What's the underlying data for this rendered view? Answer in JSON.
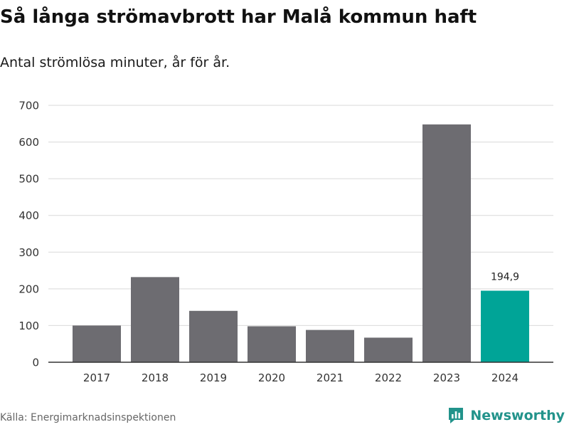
{
  "header": {
    "title": "Så långa strömavbrott har Malå kommun haft",
    "subtitle": "Antal strömlösa minuter, år för år."
  },
  "footer": {
    "source": "Källa: Energimarknadsinspektionen",
    "brand": "Newsworthy",
    "brand_icon": "newsworthy-logo-icon"
  },
  "colors": {
    "bar_default": "#6d6c71",
    "bar_highlight": "#00a497",
    "grid": "#d9d9d9",
    "axis": "#333333",
    "brand": "#22938b"
  },
  "chart_data": {
    "type": "bar",
    "title": "Så långa strömavbrott har Malå kommun haft",
    "subtitle": "Antal strömlösa minuter, år för år.",
    "xlabel": "",
    "ylabel": "",
    "categories": [
      "2017",
      "2018",
      "2019",
      "2020",
      "2021",
      "2022",
      "2023",
      "2024"
    ],
    "values": [
      100,
      232,
      140,
      98,
      88,
      67,
      648,
      194.9
    ],
    "highlight_index": 7,
    "data_labels": [
      {
        "category": "2024",
        "text": "194,9"
      }
    ],
    "ylim": [
      0,
      700
    ],
    "yticks": [
      0,
      100,
      200,
      300,
      400,
      500,
      600,
      700
    ],
    "grid": true,
    "legend": "none"
  }
}
